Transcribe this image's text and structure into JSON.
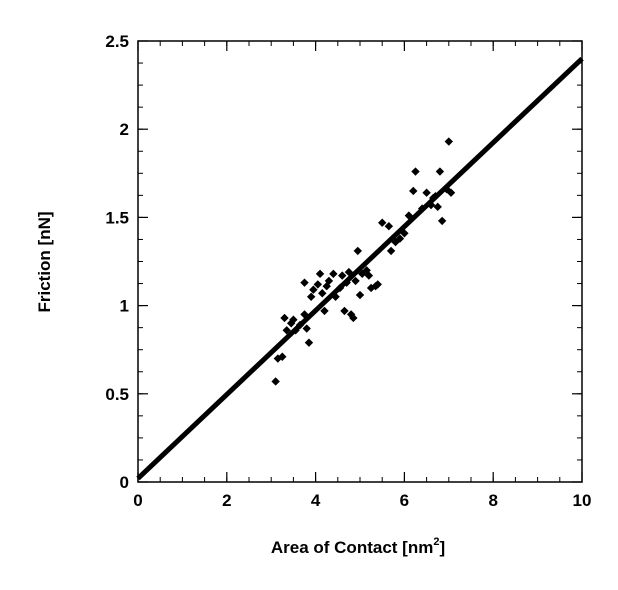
{
  "chart_data": {
    "type": "scatter",
    "title": "",
    "xlabel": "Area of Contact [nm",
    "xlabel_superscript": "2",
    "xlabel_suffix": "]",
    "ylabel": "Friction [nN]",
    "xlim": [
      0,
      10
    ],
    "ylim": [
      0,
      2.5
    ],
    "x_ticks": [
      0,
      2,
      4,
      6,
      8,
      10
    ],
    "x_tick_labels": [
      "0",
      "2",
      "4",
      "6",
      "8",
      "10"
    ],
    "y_ticks": [
      0,
      0.5,
      1,
      1.5,
      2,
      2.5
    ],
    "y_tick_labels": [
      "0",
      "0.5",
      "1",
      "1.5",
      "2",
      "2.5"
    ],
    "x_minor_step": 0.5,
    "y_minor_step": 0.125,
    "grid": false,
    "legend": "none",
    "fit_line": {
      "x": [
        0,
        10
      ],
      "y": [
        0.02,
        2.4
      ]
    },
    "points": [
      {
        "x": 3.1,
        "y": 0.57
      },
      {
        "x": 3.15,
        "y": 0.7
      },
      {
        "x": 3.25,
        "y": 0.71
      },
      {
        "x": 3.35,
        "y": 0.86
      },
      {
        "x": 3.45,
        "y": 0.9
      },
      {
        "x": 3.55,
        "y": 0.86
      },
      {
        "x": 3.65,
        "y": 0.89
      },
      {
        "x": 3.75,
        "y": 0.95
      },
      {
        "x": 3.8,
        "y": 0.87
      },
      {
        "x": 3.85,
        "y": 0.79
      },
      {
        "x": 3.3,
        "y": 0.93
      },
      {
        "x": 3.5,
        "y": 0.92
      },
      {
        "x": 3.75,
        "y": 1.13
      },
      {
        "x": 3.9,
        "y": 1.05
      },
      {
        "x": 3.95,
        "y": 1.09
      },
      {
        "x": 4.05,
        "y": 1.12
      },
      {
        "x": 4.1,
        "y": 1.18
      },
      {
        "x": 4.15,
        "y": 1.07
      },
      {
        "x": 4.2,
        "y": 0.97
      },
      {
        "x": 4.25,
        "y": 1.11
      },
      {
        "x": 4.3,
        "y": 1.14
      },
      {
        "x": 4.4,
        "y": 1.18
      },
      {
        "x": 4.45,
        "y": 1.05
      },
      {
        "x": 4.55,
        "y": 1.1
      },
      {
        "x": 4.6,
        "y": 1.17
      },
      {
        "x": 4.65,
        "y": 0.97
      },
      {
        "x": 4.7,
        "y": 1.13
      },
      {
        "x": 4.75,
        "y": 1.19
      },
      {
        "x": 4.8,
        "y": 0.95
      },
      {
        "x": 4.85,
        "y": 0.93
      },
      {
        "x": 4.9,
        "y": 1.14
      },
      {
        "x": 4.95,
        "y": 1.31
      },
      {
        "x": 5.0,
        "y": 1.06
      },
      {
        "x": 5.05,
        "y": 1.18
      },
      {
        "x": 5.15,
        "y": 1.2
      },
      {
        "x": 5.2,
        "y": 1.17
      },
      {
        "x": 5.25,
        "y": 1.1
      },
      {
        "x": 5.35,
        "y": 1.11
      },
      {
        "x": 5.4,
        "y": 1.12
      },
      {
        "x": 5.5,
        "y": 1.47
      },
      {
        "x": 5.65,
        "y": 1.45
      },
      {
        "x": 5.7,
        "y": 1.31
      },
      {
        "x": 5.8,
        "y": 1.36
      },
      {
        "x": 5.9,
        "y": 1.38
      },
      {
        "x": 6.0,
        "y": 1.41
      },
      {
        "x": 6.1,
        "y": 1.51
      },
      {
        "x": 6.2,
        "y": 1.65
      },
      {
        "x": 6.25,
        "y": 1.76
      },
      {
        "x": 6.4,
        "y": 1.55
      },
      {
        "x": 6.5,
        "y": 1.64
      },
      {
        "x": 6.6,
        "y": 1.57
      },
      {
        "x": 6.65,
        "y": 1.61
      },
      {
        "x": 6.7,
        "y": 1.62
      },
      {
        "x": 6.75,
        "y": 1.56
      },
      {
        "x": 6.8,
        "y": 1.76
      },
      {
        "x": 6.85,
        "y": 1.48
      },
      {
        "x": 6.95,
        "y": 1.66
      },
      {
        "x": 7.0,
        "y": 1.93
      },
      {
        "x": 7.05,
        "y": 1.64
      }
    ]
  }
}
